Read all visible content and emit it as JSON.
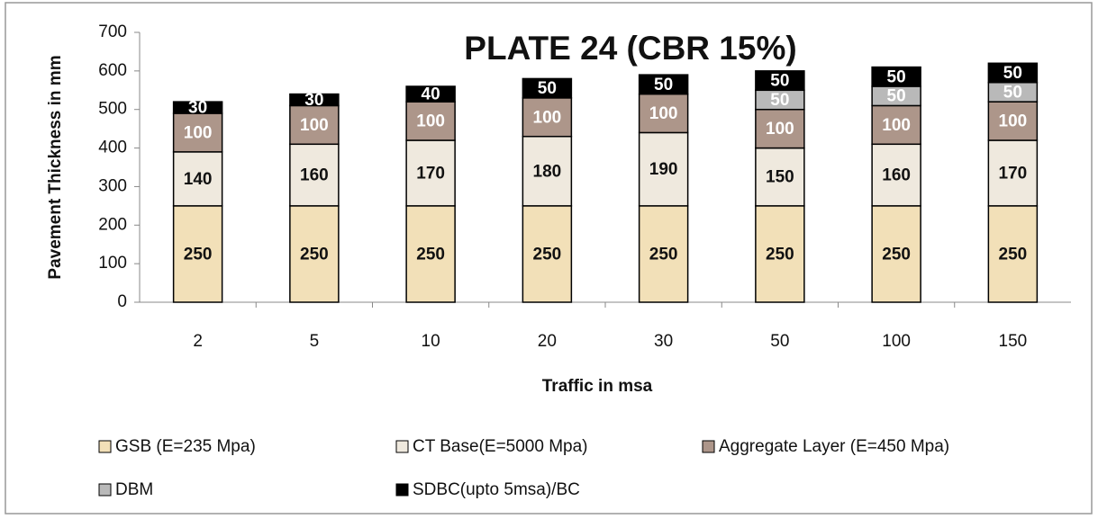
{
  "chart_data": {
    "type": "stacked_bar",
    "title": "PLATE 24 (CBR 15%)",
    "x_label": "Traffic in msa",
    "y_label": "Pavement Thickness in mm",
    "categories": [
      "2",
      "5",
      "10",
      "20",
      "30",
      "50",
      "100",
      "150"
    ],
    "series": [
      {
        "name": "GSB (E=235 Mpa)",
        "color": "#f2e0b8",
        "label_color": "#111111",
        "values": [
          250,
          250,
          250,
          250,
          250,
          250,
          250,
          250
        ]
      },
      {
        "name": "CT Base(E=5000 Mpa)",
        "color": "#efe9de",
        "label_color": "#111111",
        "values": [
          140,
          160,
          170,
          180,
          190,
          150,
          160,
          170
        ]
      },
      {
        "name": "Aggregate Layer (E=450 Mpa)",
        "color": "#ad968a",
        "label_color": "#ffffff",
        "values": [
          100,
          100,
          100,
          100,
          100,
          100,
          100,
          100
        ]
      },
      {
        "name": "DBM",
        "color": "#b9b9b9",
        "label_color": "#ffffff",
        "values": [
          null,
          null,
          null,
          null,
          null,
          50,
          50,
          50
        ]
      },
      {
        "name": "SDBC(upto 5msa)/BC",
        "color": "#000000",
        "label_color": "#ffffff",
        "values": [
          30,
          30,
          40,
          50,
          50,
          50,
          50,
          50
        ]
      }
    ],
    "ylim": [
      0,
      700
    ],
    "yticks": [
      0,
      100,
      200,
      300,
      400,
      500,
      600,
      700
    ],
    "grid": false
  }
}
